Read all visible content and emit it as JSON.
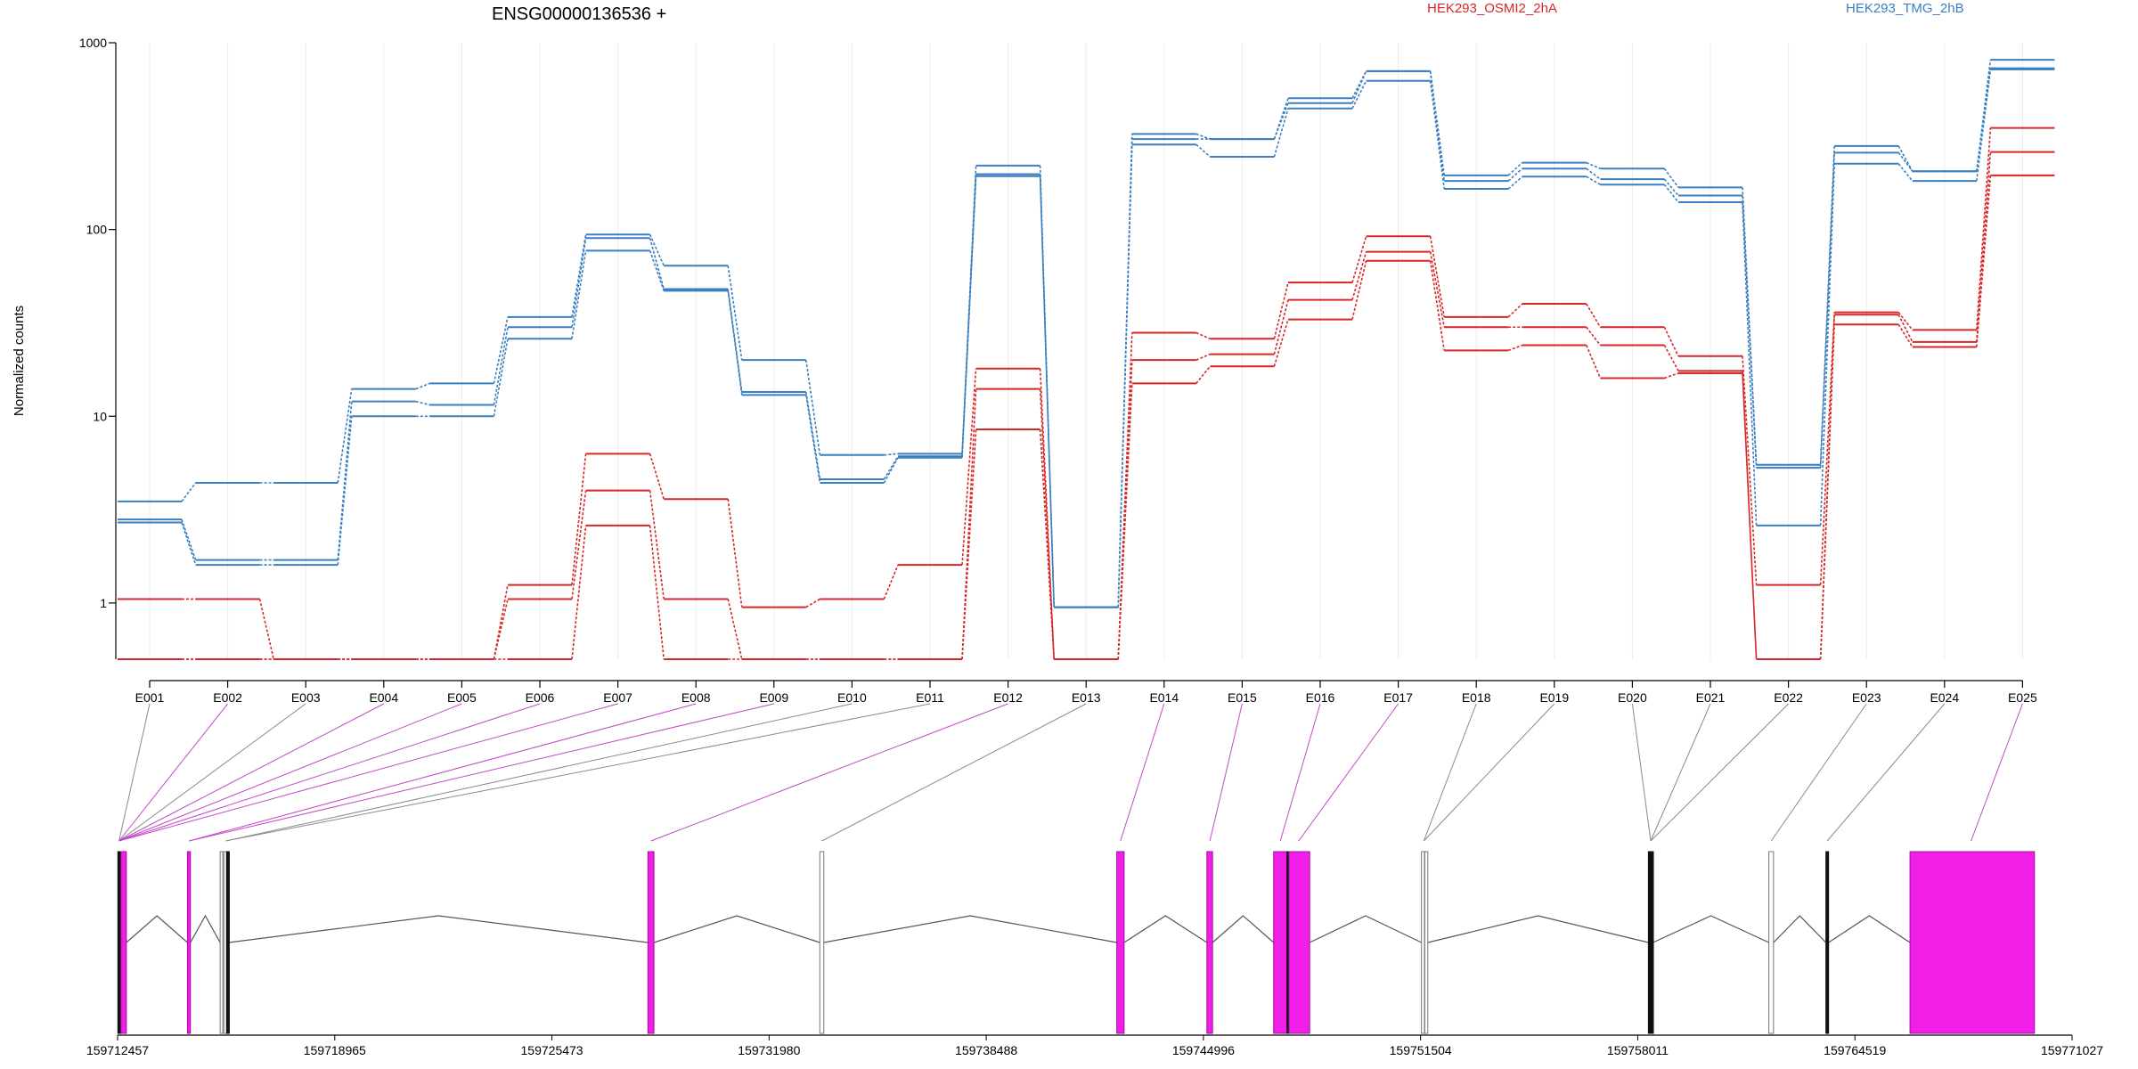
{
  "chart_data": {
    "type": "line",
    "title": "ENSG00000136536 +",
    "ylabel": "Normalized counts",
    "yscale": "log",
    "ylim": [
      0.5,
      1000
    ],
    "yticks": [
      1,
      10,
      100,
      1000
    ],
    "ytick_labels": [
      "1",
      "10",
      "100",
      "1000"
    ],
    "categories": [
      "E001",
      "E002",
      "E003",
      "E004",
      "E005",
      "E006",
      "E007",
      "E008",
      "E009",
      "E010",
      "E011",
      "E012",
      "E013",
      "E014",
      "E015",
      "E016",
      "E017",
      "E018",
      "E019",
      "E020",
      "E021",
      "E022",
      "E023",
      "E024",
      "E025"
    ],
    "groups": [
      {
        "name": "HEK293_OSMI2_2hA",
        "color": "#d62728"
      },
      {
        "name": "HEK293_TMG_2hB",
        "color": "#3a7fbf"
      }
    ],
    "series": [
      {
        "group": "HEK293_TMG_2hB",
        "values": [
          3.5,
          4.4,
          4.4,
          14,
          15,
          34,
          94,
          64,
          20,
          6.2,
          6.3,
          220,
          0.95,
          325,
          305,
          505,
          705,
          195,
          228,
          212,
          168,
          5.5,
          280,
          205,
          810
        ]
      },
      {
        "group": "HEK293_TMG_2hB",
        "values": [
          2.8,
          1.7,
          1.7,
          12,
          11.5,
          30,
          90,
          48,
          13.5,
          4.6,
          6.1,
          198,
          0.95,
          305,
          305,
          475,
          705,
          182,
          212,
          186,
          152,
          5.3,
          258,
          205,
          730
        ]
      },
      {
        "group": "HEK293_TMG_2hB",
        "values": [
          2.7,
          1.6,
          1.6,
          10,
          10,
          26,
          77,
          47,
          13,
          4.4,
          6.0,
          193,
          0.95,
          285,
          245,
          445,
          625,
          165,
          192,
          174,
          140,
          2.6,
          225,
          182,
          720
        ]
      },
      {
        "group": "HEK293_OSMI2_2hA",
        "values": [
          1.05,
          1.05,
          0.5,
          0.5,
          0.5,
          1.25,
          6.3,
          3.6,
          0.95,
          1.05,
          1.6,
          18,
          0.5,
          28,
          26,
          52,
          92,
          34,
          40,
          30,
          21,
          1.25,
          36,
          29,
          350
        ]
      },
      {
        "group": "HEK293_OSMI2_2hA",
        "values": [
          0.5,
          0.5,
          0.5,
          0.5,
          0.5,
          1.05,
          4.0,
          1.05,
          0.5,
          0.5,
          0.5,
          14,
          0.5,
          20,
          21.5,
          42,
          76,
          30,
          30,
          24,
          17.5,
          0.5,
          35,
          25,
          260
        ]
      },
      {
        "group": "HEK293_OSMI2_2hA",
        "values": [
          0.5,
          0.5,
          0.5,
          0.5,
          0.5,
          0.5,
          2.6,
          0.5,
          0.5,
          0.5,
          0.5,
          8.5,
          0.5,
          15,
          18.5,
          33,
          68,
          22.5,
          24,
          16,
          17,
          0.5,
          31,
          23.5,
          195
        ]
      }
    ],
    "genomic_axis": {
      "ticks": [
        "159712457",
        "159718965",
        "159725473",
        "159731980",
        "159738488",
        "159744996",
        "159751504",
        "159758011",
        "159764519",
        "159771027"
      ],
      "range": [
        159712457,
        159771027
      ]
    },
    "gene_model": {
      "exons": [
        {
          "start": 159712465,
          "end": 159712550,
          "kind": "black"
        },
        {
          "start": 159712560,
          "end": 159712720,
          "kind": "magenta"
        },
        {
          "start": 159714550,
          "end": 159714640,
          "kind": "magenta"
        },
        {
          "start": 159715530,
          "end": 159715610,
          "kind": "gray"
        },
        {
          "start": 159715640,
          "end": 159715720,
          "kind": "gray"
        },
        {
          "start": 159715725,
          "end": 159715790,
          "kind": "black"
        },
        {
          "start": 159728350,
          "end": 159728530,
          "kind": "magenta"
        },
        {
          "start": 159733500,
          "end": 159733620,
          "kind": "white"
        },
        {
          "start": 159742400,
          "end": 159742620,
          "kind": "magenta"
        },
        {
          "start": 159745100,
          "end": 159745270,
          "kind": "magenta"
        },
        {
          "start": 159747100,
          "end": 159747500,
          "kind": "magenta"
        },
        {
          "start": 159747500,
          "end": 159747560,
          "kind": "black"
        },
        {
          "start": 159747560,
          "end": 159748180,
          "kind": "magenta"
        },
        {
          "start": 159751530,
          "end": 159751620,
          "kind": "gray"
        },
        {
          "start": 159751630,
          "end": 159751720,
          "kind": "gray"
        },
        {
          "start": 159758330,
          "end": 159758390,
          "kind": "black"
        },
        {
          "start": 159758400,
          "end": 159758470,
          "kind": "black"
        },
        {
          "start": 159761940,
          "end": 159762080,
          "kind": "gray"
        },
        {
          "start": 159763650,
          "end": 159763730,
          "kind": "black"
        },
        {
          "start": 159766170,
          "end": 159769900,
          "kind": "magenta"
        }
      ]
    },
    "colors": {
      "magenta": "#f01ee6",
      "gray": "#bdbdbd",
      "black": "#111111",
      "grid": "#ececec",
      "link_plain": "#8a8a8a",
      "link_magenta": "#c14ac6"
    }
  }
}
